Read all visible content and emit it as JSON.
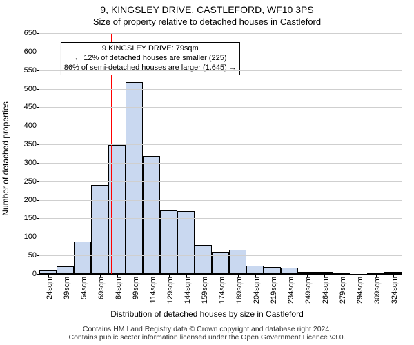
{
  "chart": {
    "type": "histogram",
    "title_line1": "9, KINGSLEY DRIVE, CASTLEFORD, WF10 3PS",
    "title_line2": "Size of property relative to detached houses in Castleford",
    "title_fontsize": 14,
    "subtitle_fontsize": 13,
    "ylabel": "Number of detached properties",
    "xlabel": "Distribution of detached houses by size in Castleford",
    "label_fontsize": 12,
    "tick_fontsize": 11,
    "background_color": "#ffffff",
    "grid_color": "#cfcfcf",
    "axis_color": "#000000",
    "bar_fill": "#c9d8f0",
    "bar_border": "#000000",
    "marker_color": "#ff0000",
    "marker_x": 79,
    "x_min": 16.5,
    "x_max": 331.5,
    "x_step": 15,
    "ylim": [
      0,
      650
    ],
    "ytick_step": 50,
    "x_ticks": [
      24,
      39,
      54,
      69,
      84,
      99,
      114,
      129,
      144,
      159,
      174,
      189,
      204,
      219,
      234,
      249,
      264,
      279,
      294,
      309,
      324
    ],
    "x_tick_labels": [
      "24sqm",
      "39sqm",
      "54sqm",
      "69sqm",
      "84sqm",
      "99sqm",
      "114sqm",
      "129sqm",
      "144sqm",
      "159sqm",
      "174sqm",
      "189sqm",
      "204sqm",
      "219sqm",
      "234sqm",
      "249sqm",
      "264sqm",
      "279sqm",
      "294sqm",
      "309sqm",
      "324sqm"
    ],
    "values": [
      10,
      20,
      88,
      240,
      348,
      518,
      318,
      172,
      170,
      78,
      60,
      65,
      22,
      18,
      16,
      6,
      5,
      4,
      0,
      4,
      6
    ],
    "annotation": {
      "line1": "9 KINGSLEY DRIVE: 79sqm",
      "line2": "← 12% of detached houses are smaller (225)",
      "line3": "86% of semi-detached houses are larger (1,645) →",
      "fontsize": 11,
      "border_color": "#000000",
      "bg_color": "#ffffff",
      "y_top": 625,
      "x_center": 113
    }
  },
  "footnote": {
    "line1": "Contains HM Land Registry data © Crown copyright and database right 2024.",
    "line2": "Contains public sector information licensed under the Open Government Licence v3.0.",
    "fontsize": 10.5,
    "color": "#333333"
  }
}
